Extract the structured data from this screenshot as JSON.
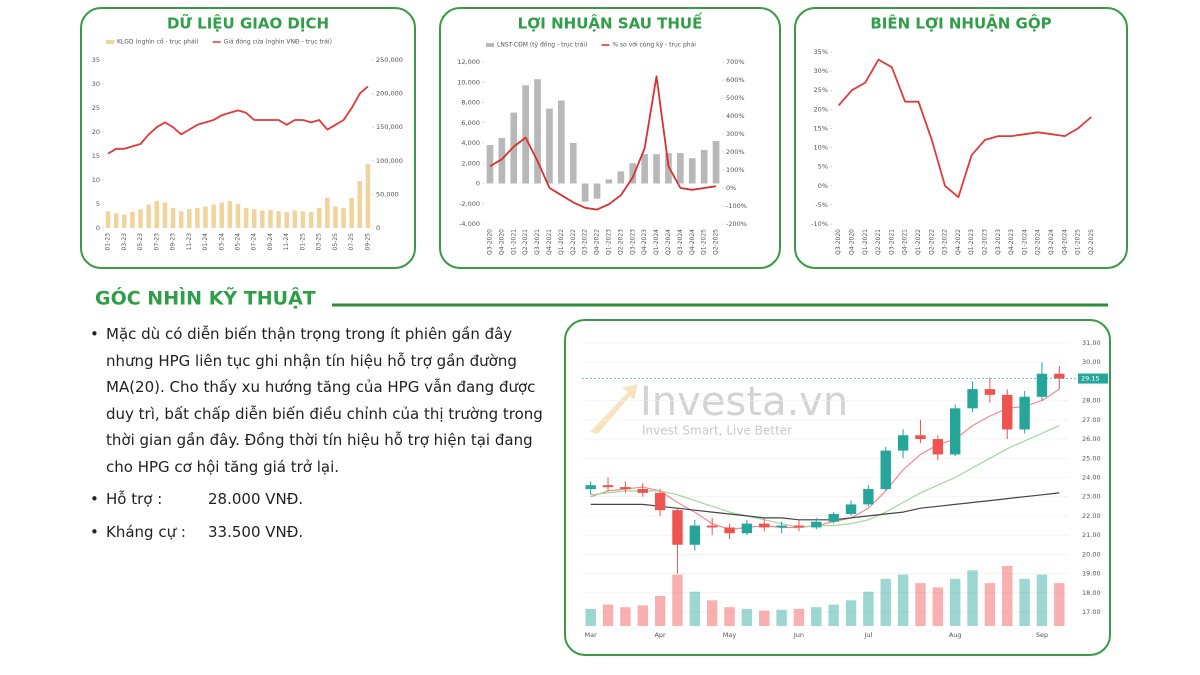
{
  "chart_data": [
    {
      "type": "combo",
      "title": "DỮ LIỆU GIAO DỊCH",
      "categories": [
        "01-23",
        null,
        "03-23",
        null,
        "05-23",
        null,
        "07-23",
        null,
        "09-23",
        null,
        "11-23",
        null,
        "01-24",
        null,
        "03-24",
        null,
        "05-24",
        null,
        "07-24",
        null,
        "09-24",
        null,
        "11-24",
        null,
        "01-25",
        null,
        "03-25",
        null,
        "05-25",
        null,
        "07-25",
        null,
        "09-25"
      ],
      "series": [
        {
          "name": "KLGD (nghìn cổ - trục phải)",
          "kind": "bar",
          "axis": "y2",
          "color": "#f1d49b",
          "values": [
            25000,
            22000,
            20000,
            24000,
            28000,
            35000,
            40000,
            38000,
            30000,
            25000,
            28000,
            30000,
            32000,
            35000,
            38000,
            40000,
            36000,
            30000,
            28000,
            26000,
            27000,
            25000,
            24000,
            26000,
            25000,
            24000,
            30000,
            45000,
            32000,
            30000,
            45000,
            70000,
            95000
          ]
        },
        {
          "name": "Giá đóng cửa (nghìn VNĐ - trục trái)",
          "kind": "line",
          "color": "#e03a3a",
          "values": [
            15.5,
            16.5,
            16.5,
            17,
            17.5,
            19.5,
            21,
            22,
            21,
            19.5,
            20.5,
            21.5,
            22,
            22.5,
            23.5,
            24,
            24.5,
            24,
            22.5,
            22.5,
            22.5,
            22.5,
            21.5,
            22.5,
            22.5,
            22,
            22.5,
            20.5,
            21.5,
            22.5,
            25,
            28,
            29.5
          ]
        }
      ],
      "ylim": [
        0,
        35
      ],
      "yticks": [
        0,
        5,
        10,
        15,
        20,
        25,
        30,
        35
      ],
      "y2lim": [
        0,
        250000
      ],
      "y2ticks": [
        0,
        {
          "value": 50000,
          "label": "50,000"
        },
        {
          "value": 100000,
          "label": "100,000"
        },
        {
          "value": 150000,
          "label": "150,000"
        },
        {
          "value": 200000,
          "label": "200,000"
        },
        {
          "value": 250000,
          "label": "250,000"
        }
      ],
      "grid": false
    },
    {
      "type": "combo",
      "title": "LỢI NHUẬN SAU THUẾ",
      "categories": [
        "Q3-2020",
        "Q4-2020",
        "Q1-2021",
        "Q2-2021",
        "Q3-2021",
        "Q4-2021",
        "Q1-2022",
        "Q2-2022",
        "Q3-2022",
        "Q4-2022",
        "Q1-2023",
        "Q2-2023",
        "Q3-2023",
        "Q4-2023",
        "Q1-2024",
        "Q2-2024",
        "Q3-2024",
        "Q4-2024",
        "Q1-2025",
        "Q2-2025"
      ],
      "series": [
        {
          "name": "LNST-CĐM (tỷ đồng - trục trái)",
          "kind": "bar",
          "color": "#b8b8b8",
          "values": [
            3800,
            4500,
            7000,
            9700,
            10300,
            7400,
            8200,
            4000,
            -1800,
            -1500,
            400,
            1200,
            2000,
            2900,
            2900,
            3000,
            3000,
            2500,
            3300,
            4200
          ]
        },
        {
          "name": "% so với cùng kỳ - trục phải",
          "kind": "line",
          "axis": "y2",
          "color": "#d93030",
          "values": [
            120,
            160,
            230,
            280,
            150,
            0,
            -40,
            -80,
            -110,
            -120,
            -90,
            -40,
            60,
            220,
            620,
            120,
            0,
            -10,
            0,
            10
          ]
        }
      ],
      "ylim": [
        -4000,
        12000
      ],
      "yticks": [
        {
          "value": -4000,
          "label": "-4,000"
        },
        {
          "value": -2000,
          "label": "-2,000"
        },
        0,
        {
          "value": 2000,
          "label": "2,000"
        },
        {
          "value": 4000,
          "label": "4,000"
        },
        {
          "value": 6000,
          "label": "6,000"
        },
        {
          "value": 8000,
          "label": "8,000"
        },
        {
          "value": 10000,
          "label": "10,000"
        },
        {
          "value": 12000,
          "label": "12,000"
        }
      ],
      "y2lim": [
        -200,
        700
      ],
      "y2ticks": [
        {
          "value": -200,
          "label": "-200%"
        },
        {
          "value": -100,
          "label": "-100%"
        },
        {
          "value": 0,
          "label": "0%"
        },
        {
          "value": 100,
          "label": "100%"
        },
        {
          "value": 200,
          "label": "200%"
        },
        {
          "value": 300,
          "label": "300%"
        },
        {
          "value": 400,
          "label": "400%"
        },
        {
          "value": 500,
          "label": "500%"
        },
        {
          "value": 600,
          "label": "600%"
        },
        {
          "value": 700,
          "label": "700%"
        }
      ],
      "grid": false
    },
    {
      "type": "combo",
      "title": "BIÊN LỢI NHUẬN GỘP",
      "categories": [
        "Q3-2020",
        "Q4-2020",
        "Q1-2021",
        "Q2-2021",
        "Q3-2021",
        "Q4-2021",
        "Q1-2022",
        "Q2-2022",
        "Q3-2022",
        "Q4-2022",
        "Q1-2023",
        "Q2-2023",
        "Q3-2023",
        "Q4-2023",
        "Q1-2024",
        "Q2-2024",
        "Q3-2024",
        "Q4-2024",
        "Q1-2025",
        "Q2-2025"
      ],
      "series": [
        {
          "kind": "line",
          "color": "#e03a3a",
          "values": [
            21,
            25,
            27,
            33,
            31,
            22,
            22,
            12,
            0,
            -3,
            8,
            12,
            13,
            13,
            13.5,
            14,
            13.5,
            13,
            15,
            18
          ]
        }
      ],
      "ylim": [
        -10,
        35
      ],
      "yticks": [
        {
          "value": -10,
          "label": "-10%"
        },
        {
          "value": -5,
          "label": "-5%"
        },
        {
          "value": 0,
          "label": "0%"
        },
        {
          "value": 5,
          "label": "5%"
        },
        {
          "value": 10,
          "label": "10%"
        },
        {
          "value": 15,
          "label": "15%"
        },
        {
          "value": 20,
          "label": "20%"
        },
        {
          "value": 25,
          "label": "25%"
        },
        {
          "value": 30,
          "label": "30%"
        },
        {
          "value": 35,
          "label": "35%"
        }
      ],
      "grid": false
    },
    {
      "type": "candlestick",
      "watermark": "Investa.vn",
      "watermark_tagline": "Invest Smart, Live Better",
      "categories": [
        "Mar",
        null,
        null,
        null,
        "Apr",
        null,
        null,
        null,
        "May",
        null,
        null,
        null,
        "Jun",
        null,
        null,
        null,
        "Jul",
        null,
        null,
        null,
        null,
        "Aug",
        null,
        null,
        null,
        null,
        "Sep",
        null
      ],
      "open": [
        23.4,
        23.6,
        23.5,
        23.4,
        23.2,
        22.3,
        20.5,
        21.5,
        21.4,
        21.1,
        21.6,
        21.4,
        21.5,
        21.4,
        21.7,
        22.1,
        22.6,
        23.4,
        25.4,
        26.2,
        26.0,
        25.2,
        27.6,
        28.6,
        28.3,
        26.5,
        28.2,
        29.4
      ],
      "high": [
        23.8,
        24.0,
        23.8,
        23.7,
        23.4,
        22.4,
        21.8,
        21.9,
        21.6,
        21.8,
        21.9,
        21.7,
        21.8,
        21.9,
        22.2,
        22.8,
        23.6,
        25.6,
        26.5,
        27.0,
        26.2,
        27.8,
        29.0,
        29.2,
        28.6,
        28.5,
        30.0,
        29.8
      ],
      "low": [
        23.1,
        23.3,
        23.2,
        23.0,
        22.0,
        19.0,
        20.2,
        21.0,
        20.8,
        21.0,
        21.2,
        21.1,
        21.2,
        21.3,
        21.6,
        22.0,
        22.5,
        23.3,
        25.0,
        25.8,
        24.9,
        25.1,
        27.4,
        27.9,
        26.0,
        26.3,
        28.0,
        28.6
      ],
      "close": [
        23.6,
        23.5,
        23.4,
        23.2,
        22.3,
        20.5,
        21.5,
        21.4,
        21.1,
        21.6,
        21.4,
        21.5,
        21.4,
        21.7,
        22.1,
        22.6,
        23.4,
        25.4,
        26.2,
        26.0,
        25.2,
        27.6,
        28.6,
        28.3,
        26.5,
        28.2,
        29.4,
        29.15
      ],
      "volume": [
        20,
        25,
        22,
        24,
        35,
        60,
        40,
        30,
        22,
        20,
        18,
        19,
        20,
        22,
        25,
        30,
        40,
        55,
        60,
        50,
        45,
        55,
        65,
        50,
        70,
        55,
        60,
        50
      ],
      "lines": [
        {
          "color": "#f08a93",
          "values": [
            23.0,
            23.3,
            23.4,
            23.5,
            23.3,
            22.7,
            22.2,
            21.6,
            21.3,
            21.4,
            21.5,
            21.4,
            21.4,
            21.5,
            21.7,
            21.9,
            22.4,
            23.3,
            24.4,
            25.2,
            25.7,
            26.0,
            26.7,
            27.2,
            27.6,
            27.7,
            28.0,
            28.6
          ]
        },
        {
          "color": "#9ed99a",
          "values": [
            23.1,
            23.2,
            23.3,
            23.3,
            23.3,
            23.1,
            22.8,
            22.5,
            22.2,
            22.0,
            21.8,
            21.6,
            21.4,
            21.5,
            21.5,
            21.6,
            21.8,
            22.2,
            22.7,
            23.2,
            23.6,
            24.0,
            24.5,
            25.0,
            25.5,
            25.9,
            26.3,
            26.7
          ]
        },
        {
          "color": "#444444",
          "values": [
            22.6,
            22.6,
            22.6,
            22.6,
            22.5,
            22.4,
            22.3,
            22.2,
            22.1,
            22.0,
            21.9,
            21.9,
            21.8,
            21.8,
            21.8,
            21.9,
            22.0,
            22.1,
            22.2,
            22.4,
            22.5,
            22.6,
            22.7,
            22.8,
            22.9,
            23.0,
            23.1,
            23.2
          ]
        }
      ],
      "up_color": "#26a69a",
      "down_color": "#ef5350",
      "ylim": [
        17,
        31
      ],
      "yticks": [
        {
          "value": 17,
          "label": "17.00"
        },
        {
          "value": 18,
          "label": "18.00"
        },
        {
          "value": 19,
          "label": "19.00"
        },
        {
          "value": 20,
          "label": "20.00"
        },
        {
          "value": 21,
          "label": "21.00"
        },
        {
          "value": 22,
          "label": "22.00"
        },
        {
          "value": 23,
          "label": "23.00"
        },
        {
          "value": 24,
          "label": "24.00"
        },
        {
          "value": 25,
          "label": "25.00"
        },
        {
          "value": 26,
          "label": "26.00"
        },
        {
          "value": 27,
          "label": "27.00"
        },
        {
          "value": 28,
          "label": "28.00"
        },
        {
          "value": 29,
          "label": "29.00"
        },
        {
          "value": 30,
          "label": "30.00"
        },
        {
          "value": 31,
          "label": "31.00"
        }
      ],
      "grid": true
    }
  ],
  "technical": {
    "title": "GÓC NHÌN KỸ THUẬT",
    "paragraph": "Mặc dù có diễn biến thận trọng trong ít phiên gần đây nhưng HPG liên tục ghi nhận tín hiệu hỗ trợ gần đường MA(20). Cho thấy xu hướng tăng của HPG vẫn đang được duy trì, bất chấp diễn biến điều chỉnh của thị trường trong thời gian gần đây. Đồng thời tín hiệu hỗ trợ hiện tại đang cho HPG cơ hội tăng giá trở lại.",
    "support_label": "Hỗ trợ :",
    "support_value": "28.000 VNĐ.",
    "resistance_label": "Kháng cự :",
    "resistance_value": "33.500 VNĐ."
  }
}
